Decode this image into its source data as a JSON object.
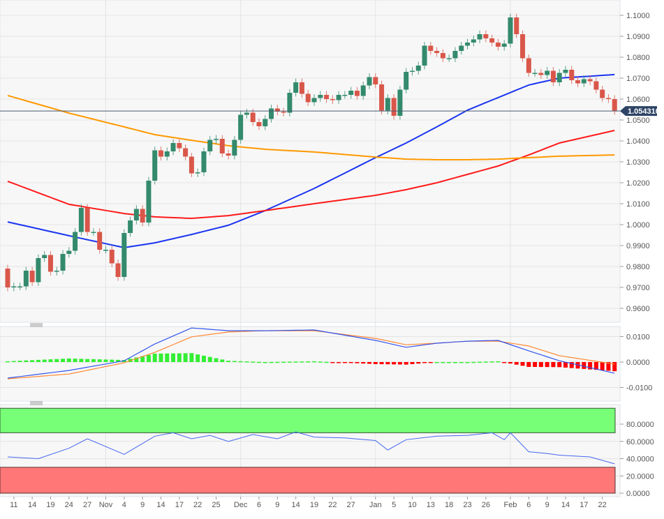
{
  "chart_data": {
    "type": "candlestick",
    "title": "",
    "colors": {
      "up": "#338a6c",
      "down": "#d9574a",
      "ma_blue": "#1a35f0",
      "ma_red": "#ff1a1a",
      "ma_orange": "#ff9900",
      "macd_line": "#3355ee",
      "signal_line": "#ff8833",
      "hist_up": "#33ee33",
      "hist_down": "#ff0000",
      "rsi_line": "#4466ee",
      "overbought": "#77ff77",
      "oversold": "#ff7777",
      "last_price_bg": "#2d4466"
    },
    "price_axis": {
      "ylim": [
        0.955,
        1.107
      ],
      "ticks": [
        "1.1000",
        "1.0900",
        "1.0800",
        "1.0700",
        "1.0600",
        "1.0500",
        "1.0400",
        "1.0300",
        "1.0200",
        "1.0100",
        "1.0000",
        "0.9900",
        "0.9800",
        "0.9700",
        "0.9600"
      ]
    },
    "last_price": "1.054310",
    "dates": [
      "Oct 10",
      "Oct 11",
      "Oct 12",
      "Oct 13",
      "Oct 14",
      "Oct 17",
      "Oct 18",
      "Oct 19",
      "Oct 20",
      "Oct 21",
      "Oct 24",
      "Oct 25",
      "Oct 26",
      "Oct 27",
      "Oct 28",
      "Oct 31",
      "Nov 1",
      "Nov 2",
      "Nov 3",
      "Nov 4",
      "Nov 7",
      "Nov 8",
      "Nov 9",
      "Nov 10",
      "Nov 11",
      "Nov 14",
      "Nov 15",
      "Nov 16",
      "Nov 17",
      "Nov 18",
      "Nov 21",
      "Nov 22",
      "Nov 23",
      "Nov 24",
      "Nov 25",
      "Nov 28",
      "Nov 29",
      "Nov 30",
      "Dec 1",
      "Dec 2",
      "Dec 5",
      "Dec 6",
      "Dec 7",
      "Dec 8",
      "Dec 9",
      "Dec 12",
      "Dec 13",
      "Dec 14",
      "Dec 15",
      "Dec 16",
      "Dec 19",
      "Dec 20",
      "Dec 21",
      "Dec 22",
      "Dec 23",
      "Dec 26",
      "Dec 27",
      "Dec 28",
      "Dec 29",
      "Dec 30",
      "Jan 2",
      "Jan 3",
      "Jan 4",
      "Jan 5",
      "Jan 6",
      "Jan 9",
      "Jan 10",
      "Jan 11",
      "Jan 12",
      "Jan 13",
      "Jan 16",
      "Jan 17",
      "Jan 18",
      "Jan 19",
      "Jan 20",
      "Jan 23",
      "Jan 24",
      "Jan 25",
      "Jan 26",
      "Jan 27",
      "Jan 30",
      "Jan 31",
      "Feb 1",
      "Feb 2",
      "Feb 3",
      "Feb 6",
      "Feb 7",
      "Feb 8",
      "Feb 9",
      "Feb 10",
      "Feb 13",
      "Feb 14",
      "Feb 15",
      "Feb 16",
      "Feb 17",
      "Feb 20",
      "Feb 21",
      "Feb 22",
      "Feb 23",
      "Feb 24"
    ],
    "first_open": 0.979,
    "closes": [
      0.97,
      0.9705,
      0.9705,
      0.978,
      0.9725,
      0.984,
      0.9855,
      0.9775,
      0.978,
      0.986,
      0.9875,
      0.9965,
      1.008,
      0.9965,
      0.9965,
      0.988,
      0.988,
      0.9815,
      0.975,
      0.996,
      1.002,
      1.0075,
      1.001,
      1.021,
      1.0355,
      1.0325,
      1.035,
      1.039,
      1.0365,
      1.0325,
      1.0245,
      1.025,
      1.035,
      1.0405,
      1.041,
      1.034,
      1.033,
      1.0405,
      1.0525,
      1.0535,
      1.049,
      1.047,
      1.0505,
      1.0555,
      1.054,
      1.0535,
      1.063,
      1.068,
      1.0625,
      1.0585,
      1.0605,
      1.062,
      1.06,
      1.0595,
      1.062,
      1.062,
      1.064,
      1.0615,
      1.0665,
      1.0705,
      1.067,
      1.0545,
      1.0605,
      1.052,
      1.0645,
      1.073,
      1.0735,
      1.076,
      1.0855,
      1.083,
      1.082,
      1.0795,
      1.0795,
      1.083,
      1.0855,
      1.087,
      1.0885,
      1.091,
      1.089,
      1.087,
      1.085,
      1.0865,
      1.099,
      1.091,
      1.0795,
      1.0725,
      1.0725,
      1.0715,
      1.0735,
      1.068,
      1.0725,
      1.074,
      1.069,
      1.0675,
      1.0695,
      1.0685,
      1.0645,
      1.0605,
      1.06,
      1.0543
    ],
    "moving_averages": [
      {
        "color": "ma_blue",
        "points": [
          [
            "Oct 10",
            1.0013
          ],
          [
            "Oct 24",
            0.9947
          ],
          [
            "Nov 4",
            0.989
          ],
          [
            "Nov 11",
            0.9913
          ],
          [
            "Nov 21",
            0.9953
          ],
          [
            "Nov 29",
            0.9997
          ],
          [
            "Dec 7",
            1.0067
          ],
          [
            "Dec 19",
            1.0173
          ],
          [
            "Jan 2",
            1.032
          ],
          [
            "Jan 9",
            1.039
          ],
          [
            "Jan 16",
            1.0467
          ],
          [
            "Jan 23",
            1.0547
          ],
          [
            "Jan 30",
            1.0607
          ],
          [
            "Feb 6",
            1.0667
          ],
          [
            "Feb 13",
            1.07
          ],
          [
            "Feb 24",
            1.0717
          ]
        ]
      },
      {
        "color": "ma_red",
        "points": [
          [
            "Oct 10",
            1.0207
          ],
          [
            "Oct 24",
            1.0097
          ],
          [
            "Nov 4",
            1.0053
          ],
          [
            "Nov 11",
            1.0037
          ],
          [
            "Nov 21",
            1.003
          ],
          [
            "Nov 29",
            1.0043
          ],
          [
            "Dec 7",
            1.0067
          ],
          [
            "Dec 19",
            1.01
          ],
          [
            "Jan 2",
            1.014
          ],
          [
            "Jan 9",
            1.0167
          ],
          [
            "Jan 16",
            1.02
          ],
          [
            "Jan 23",
            1.024
          ],
          [
            "Jan 30",
            1.028
          ],
          [
            "Feb 6",
            1.0333
          ],
          [
            "Feb 13",
            1.039
          ],
          [
            "Feb 24",
            1.045
          ]
        ]
      },
      {
        "color": "ma_orange",
        "points": [
          [
            "Oct 10",
            1.0617
          ],
          [
            "Oct 24",
            1.0533
          ],
          [
            "Nov 4",
            1.0467
          ],
          [
            "Nov 11",
            1.043
          ],
          [
            "Nov 21",
            1.0403
          ],
          [
            "Nov 29",
            1.0377
          ],
          [
            "Dec 7",
            1.036
          ],
          [
            "Dec 19",
            1.0347
          ],
          [
            "Jan 2",
            1.0323
          ],
          [
            "Jan 9",
            1.0313
          ],
          [
            "Jan 16",
            1.031
          ],
          [
            "Jan 23",
            1.031
          ],
          [
            "Jan 30",
            1.0313
          ],
          [
            "Feb 6",
            1.032
          ],
          [
            "Feb 13",
            1.0327
          ],
          [
            "Feb 24",
            1.0333
          ]
        ]
      }
    ],
    "macd": {
      "ticks": [
        "0.0100",
        "0.0000",
        "-0.0100"
      ],
      "macd_line": [
        [
          "Oct 10",
          -0.0063
        ],
        [
          "Oct 24",
          -0.0033
        ],
        [
          "Nov 4",
          0.0005
        ],
        [
          "Nov 11",
          0.0071
        ],
        [
          "Nov 21",
          0.0134
        ],
        [
          "Nov 29",
          0.0123
        ],
        [
          "Dec 7",
          0.0123
        ],
        [
          "Dec 19",
          0.0126
        ],
        [
          "Jan 2",
          0.0085
        ],
        [
          "Jan 9",
          0.0058
        ],
        [
          "Jan 16",
          0.0074
        ],
        [
          "Jan 23",
          0.0082
        ],
        [
          "Jan 30",
          0.0085
        ],
        [
          "Feb 6",
          0.0044
        ],
        [
          "Feb 13",
          0.0005
        ],
        [
          "Feb 24",
          -0.0044
        ]
      ],
      "signal_line": [
        [
          "Oct 10",
          -0.0066
        ],
        [
          "Oct 24",
          -0.0047
        ],
        [
          "Nov 4",
          -0.0003
        ],
        [
          "Nov 11",
          0.0038
        ],
        [
          "Nov 21",
          0.0099
        ],
        [
          "Nov 29",
          0.0118
        ],
        [
          "Dec 7",
          0.0123
        ],
        [
          "Dec 19",
          0.0123
        ],
        [
          "Jan 2",
          0.0093
        ],
        [
          "Jan 9",
          0.0068
        ],
        [
          "Jan 16",
          0.0074
        ],
        [
          "Jan 23",
          0.0082
        ],
        [
          "Jan 30",
          0.0082
        ],
        [
          "Feb 6",
          0.0063
        ],
        [
          "Feb 13",
          0.0025
        ],
        [
          "Feb 24",
          -0.0008
        ]
      ]
    },
    "rsi": {
      "ticks": [
        "80.0000",
        "60.0000",
        "40.0000",
        "20.0000",
        "0.0000"
      ],
      "overbought": 70,
      "oversold": 30,
      "points": [
        [
          "Oct 10",
          42
        ],
        [
          "Oct 17",
          40
        ],
        [
          "Oct 24",
          52
        ],
        [
          "Oct 27",
          63
        ],
        [
          "Nov 1",
          54
        ],
        [
          "Nov 4",
          45
        ],
        [
          "Nov 11",
          66
        ],
        [
          "Nov 16",
          70
        ],
        [
          "Nov 21",
          63
        ],
        [
          "Nov 24",
          67
        ],
        [
          "Nov 29",
          60
        ],
        [
          "Dec 5",
          68
        ],
        [
          "Dec 9",
          63
        ],
        [
          "Dec 14",
          71
        ],
        [
          "Dec 19",
          65
        ],
        [
          "Dec 26",
          64
        ],
        [
          "Jan 2",
          61
        ],
        [
          "Jan 4",
          50
        ],
        [
          "Jan 9",
          62
        ],
        [
          "Jan 16",
          66
        ],
        [
          "Jan 23",
          67
        ],
        [
          "Jan 27",
          70
        ],
        [
          "Jan 31",
          62
        ],
        [
          "Feb 1",
          70
        ],
        [
          "Feb 6",
          48
        ],
        [
          "Feb 9",
          46
        ],
        [
          "Feb 13",
          44
        ],
        [
          "Feb 20",
          42
        ],
        [
          "Feb 24",
          34
        ]
      ]
    },
    "x_labels": [
      [
        "11",
        "Oct 11"
      ],
      [
        "14",
        "Oct 14"
      ],
      [
        "19",
        "Oct 19"
      ],
      [
        "24",
        "Oct 24"
      ],
      [
        "27",
        "Oct 27"
      ],
      [
        "Nov",
        "Nov 1"
      ],
      [
        "4",
        "Nov 4"
      ],
      [
        "9",
        "Nov 9"
      ],
      [
        "14",
        "Nov 14"
      ],
      [
        "17",
        "Nov 17"
      ],
      [
        "22",
        "Nov 22"
      ],
      [
        "25",
        "Nov 25"
      ],
      [
        "Dec",
        "Dec 1"
      ],
      [
        "6",
        "Dec 6"
      ],
      [
        "9",
        "Dec 9"
      ],
      [
        "14",
        "Dec 14"
      ],
      [
        "19",
        "Dec 19"
      ],
      [
        "22",
        "Dec 22"
      ],
      [
        "27",
        "Dec 27"
      ],
      [
        "Jan",
        "Jan 2"
      ],
      [
        "5",
        "Jan 5"
      ],
      [
        "10",
        "Jan 10"
      ],
      [
        "13",
        "Jan 13"
      ],
      [
        "18",
        "Jan 18"
      ],
      [
        "23",
        "Jan 23"
      ],
      [
        "26",
        "Jan 26"
      ],
      [
        "Feb",
        "Feb 1"
      ],
      [
        "6",
        "Feb 6"
      ],
      [
        "9",
        "Feb 9"
      ],
      [
        "14",
        "Feb 14"
      ],
      [
        "17",
        "Feb 17"
      ],
      [
        "22",
        "Feb 22"
      ]
    ]
  }
}
